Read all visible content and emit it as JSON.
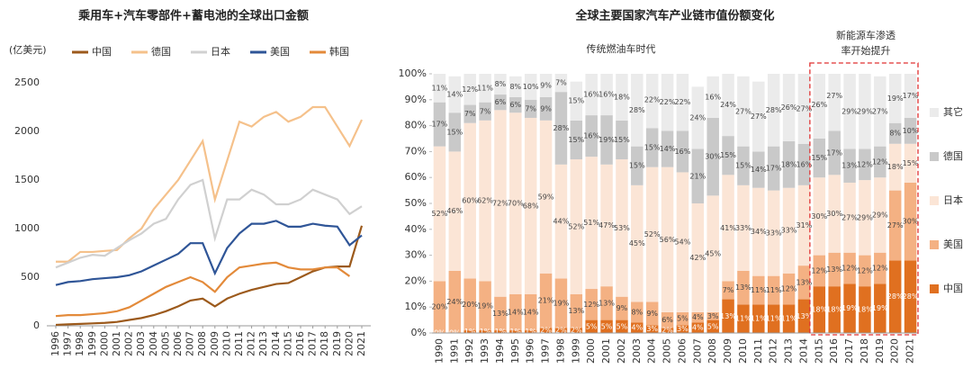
{
  "chart_data": [
    {
      "type": "line",
      "title": "乘用车+汽车零部件+蓄电池的全球出口金额",
      "ylabel": "(亿美元)",
      "categories": [
        "1996",
        "1997",
        "1998",
        "1999",
        "2000",
        "2001",
        "2002",
        "2003",
        "2004",
        "2005",
        "2006",
        "2007",
        "2008",
        "2009",
        "2010",
        "2011",
        "2012",
        "2013",
        "2014",
        "2015",
        "2016",
        "2017",
        "2018",
        "2019",
        "2020",
        "2021"
      ],
      "ylim": [
        0,
        2500
      ],
      "yticks": [
        0,
        500,
        1000,
        1500,
        2000,
        2500
      ],
      "series": [
        {
          "name": "中国",
          "color": "#9c5a1c",
          "values": [
            10,
            15,
            20,
            25,
            30,
            40,
            60,
            80,
            110,
            150,
            200,
            260,
            280,
            200,
            280,
            330,
            370,
            400,
            430,
            440,
            500,
            560,
            600,
            610,
            610,
            1030
          ]
        },
        {
          "name": "德国",
          "color": "#f5c18b",
          "values": [
            660,
            660,
            760,
            760,
            770,
            780,
            900,
            1000,
            1200,
            1350,
            1500,
            1700,
            1900,
            1300,
            1700,
            2100,
            2050,
            2150,
            2200,
            2100,
            2150,
            2250,
            2250,
            2050,
            1850,
            2120
          ]
        },
        {
          "name": "日本",
          "color": "#d0d0d0",
          "values": [
            600,
            650,
            700,
            730,
            720,
            800,
            880,
            950,
            1050,
            1100,
            1300,
            1450,
            1500,
            900,
            1300,
            1300,
            1400,
            1350,
            1250,
            1250,
            1300,
            1400,
            1350,
            1300,
            1150,
            1230
          ]
        },
        {
          "name": "美国",
          "color": "#2f5597",
          "values": [
            420,
            450,
            460,
            480,
            490,
            500,
            520,
            560,
            620,
            680,
            740,
            850,
            850,
            540,
            800,
            950,
            1050,
            1050,
            1080,
            1020,
            1020,
            1050,
            1030,
            1020,
            830,
            930
          ]
        },
        {
          "name": "韩国",
          "color": "#e38a3a",
          "values": [
            100,
            110,
            110,
            120,
            130,
            150,
            190,
            260,
            330,
            400,
            450,
            500,
            450,
            350,
            500,
            600,
            620,
            640,
            650,
            600,
            580,
            580,
            600,
            600,
            510,
            null
          ]
        }
      ]
    },
    {
      "type": "stacked_bar",
      "title": "全球主要国家汽车产业链市值份额变化",
      "annotations": [
        {
          "text": "传统燃油车时代"
        },
        {
          "lines": [
            "新能源车渗透",
            "率开始提升"
          ]
        }
      ],
      "categories": [
        "1990",
        "1991",
        "1992",
        "1993",
        "1994",
        "1995",
        "1996",
        "1997",
        "1998",
        "1999",
        "2000",
        "2001",
        "2002",
        "2003",
        "2004",
        "2005",
        "2006",
        "2007",
        "2008",
        "2009",
        "2010",
        "2011",
        "2012",
        "2013",
        "2014",
        "2015",
        "2016",
        "2017",
        "2018",
        "2019",
        "2020",
        "2021"
      ],
      "ylim": [
        0,
        100
      ],
      "yticks": [
        {
          "value": 0,
          "label": "0%"
        },
        {
          "value": 10,
          "label": "10%"
        },
        {
          "value": 20,
          "label": "20%"
        },
        {
          "value": 30,
          "label": "30%"
        },
        {
          "value": 40,
          "label": "40%"
        },
        {
          "value": 50,
          "label": "50%"
        },
        {
          "value": 60,
          "label": "60%"
        },
        {
          "value": 70,
          "label": "70%"
        },
        {
          "value": 80,
          "label": "80%"
        },
        {
          "value": 90,
          "label": "90%"
        },
        {
          "value": 100,
          "label": "100%"
        }
      ],
      "series": [
        {
          "name": "中国",
          "color": "#e07020",
          "label_color": "#fff",
          "values": [
            0,
            0,
            1,
            1,
            1,
            1,
            1,
            2,
            2,
            2,
            5,
            5,
            5,
            4,
            3,
            2,
            3,
            4,
            5,
            13,
            11,
            11,
            11,
            11,
            13,
            18,
            18,
            19,
            18,
            19,
            28,
            28
          ],
          "value_labels": [
            "0%",
            "0%",
            "1%",
            "1%",
            "1%",
            "1%",
            "1%",
            "2%",
            "2%",
            "2%",
            "5%",
            "5%",
            "5%",
            "4%",
            "3%",
            "2%",
            "3%",
            "4%",
            "5%",
            "13%",
            "11%",
            "11%",
            "11%",
            "11%",
            "13%",
            "18%",
            "18%",
            "19%",
            "18%",
            "19%",
            "28%",
            "28%"
          ]
        },
        {
          "name": "美国",
          "color": "#f4b183",
          "label_color": "#444",
          "values": [
            20,
            24,
            20,
            19,
            13,
            14,
            14,
            21,
            19,
            13,
            12,
            13,
            9,
            8,
            9,
            6,
            5,
            4,
            3,
            7,
            13,
            11,
            11,
            12,
            13,
            12,
            13,
            12,
            12,
            12,
            27,
            30
          ],
          "value_labels": [
            "20%",
            "24%",
            "20%",
            "19%",
            "13%",
            "14%",
            "14%",
            "21%",
            "19%",
            "13%",
            "12%",
            "13%",
            "9%",
            "8%",
            "9%",
            "6%",
            "5%",
            "4%",
            "3%",
            "7%",
            "13%",
            "11%",
            "11%",
            "12%",
            "13%",
            "12%",
            "13%",
            "12%",
            "12%",
            "12%",
            "27%",
            "30%"
          ]
        },
        {
          "name": "日本",
          "color": "#fbe5d6",
          "label_color": "#444",
          "values": [
            52,
            46,
            60,
            62,
            72,
            70,
            68,
            59,
            44,
            52,
            51,
            47,
            53,
            45,
            52,
            56,
            54,
            42,
            45,
            41,
            33,
            34,
            33,
            33,
            31,
            30,
            30,
            27,
            29,
            29,
            18,
            15
          ],
          "value_labels": [
            "52%",
            "46%",
            "60%",
            "62%",
            "72%",
            "70%",
            "68%",
            "59%",
            "44%",
            "52%",
            "51%",
            "47%",
            "53%",
            "45%",
            "52%",
            "56%",
            "54%",
            "42%",
            "45%",
            "41%",
            "33%",
            "34%",
            "33%",
            "33%",
            "31%",
            "30%",
            "30%",
            "27%",
            "29%",
            "29%",
            "18%",
            "15%"
          ]
        },
        {
          "name": "德国",
          "color": "#c9c9c9",
          "label_color": "#444",
          "values": [
            17,
            15,
            7,
            7,
            6,
            6,
            7,
            9,
            28,
            15,
            16,
            19,
            15,
            15,
            15,
            14,
            16,
            21,
            30,
            15,
            15,
            14,
            17,
            18,
            16,
            15,
            17,
            13,
            12,
            12,
            8,
            10
          ],
          "value_labels": [
            "17%",
            "15%",
            "7%",
            "7%",
            "6%",
            "6%",
            "7%",
            "9%",
            "28%",
            "15%",
            "16%",
            "19%",
            "15%",
            "15%",
            "15%",
            "14%",
            "16%",
            "21%",
            "30%",
            "15%",
            "15%",
            "14%",
            "17%",
            "18%",
            "16%",
            "15%",
            "17%",
            "13%",
            "12%",
            "12%",
            "8%",
            "10%"
          ]
        },
        {
          "name": "其它",
          "color": "#ebebeb",
          "label_color": "#444",
          "values": [
            11,
            14,
            12,
            11,
            8,
            8,
            10,
            9,
            7,
            15,
            16,
            16,
            18,
            28,
            22,
            22,
            22,
            24,
            16,
            24,
            27,
            27,
            28,
            26,
            27,
            26,
            27,
            29,
            29,
            27,
            19,
            17
          ],
          "value_labels": [
            "11%",
            "14%",
            "12%",
            "11%",
            "8%",
            "8%",
            "10%",
            "9%",
            "7%",
            "15%",
            "16%",
            "16%",
            "18%",
            "28%",
            "22%",
            "22%",
            "22%",
            "24%",
            "16%",
            "24%",
            "27%",
            "27%",
            "28%",
            "26%",
            "27%",
            "26%",
            "27%",
            "29%",
            "29%",
            "27%",
            "19%",
            "17%"
          ]
        }
      ]
    }
  ]
}
